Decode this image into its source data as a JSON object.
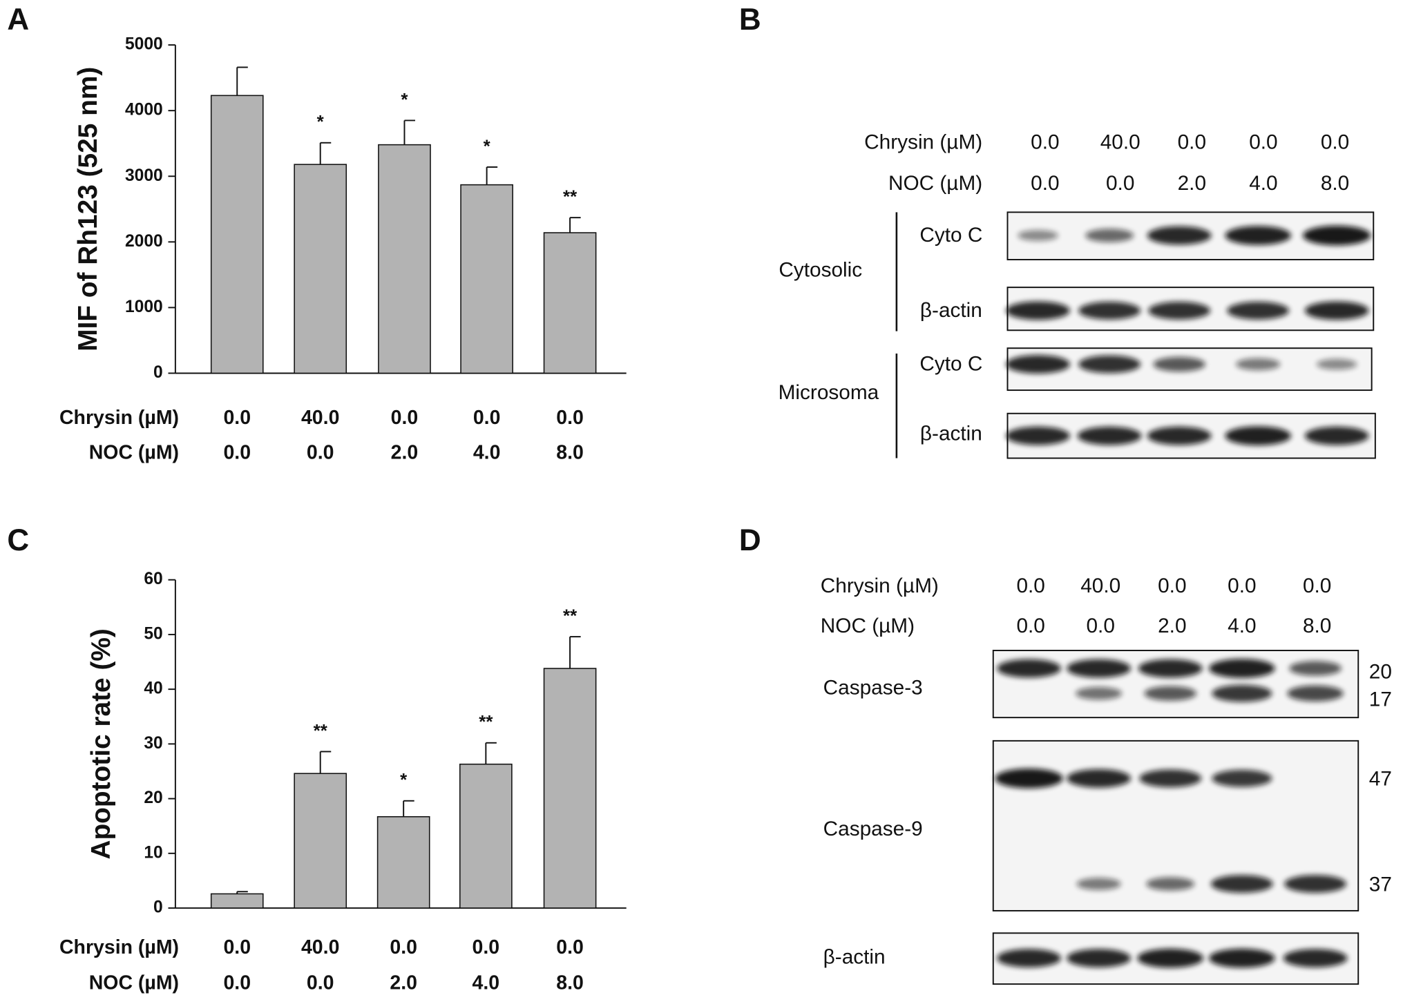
{
  "chart_data": [
    {
      "type": "bar",
      "panel": "A",
      "ylabel": "MIF of Rh123 (525 nm)",
      "values": [
        4230,
        3180,
        3480,
        2870,
        2140
      ],
      "errors": [
        430,
        330,
        370,
        270,
        230
      ],
      "annotations": [
        null,
        "*",
        "*",
        "*",
        "**"
      ],
      "color": "#b3b3b3",
      "ylim": [
        0,
        5000
      ],
      "yticks": [
        0,
        1000,
        2000,
        3000,
        4000,
        5000
      ],
      "conditions": [
        {
          "label": "Chrysin (µM)",
          "values": [
            "0.0",
            "40.0",
            "0.0",
            "0.0",
            "0.0"
          ]
        },
        {
          "label": "NOC (µM)",
          "values": [
            "0.0",
            "0.0",
            "2.0",
            "4.0",
            "8.0"
          ]
        }
      ]
    },
    {
      "type": "bar",
      "panel": "C",
      "ylabel": "Apoptotic rate (%)",
      "values": [
        2.6,
        24.6,
        16.7,
        26.3,
        43.8
      ],
      "errors": [
        0.4,
        4.0,
        2.9,
        3.9,
        5.8
      ],
      "annotations": [
        null,
        "**",
        "*",
        "**",
        "**"
      ],
      "color": "#b3b3b3",
      "ylim": [
        0,
        60
      ],
      "yticks": [
        0,
        10,
        20,
        30,
        40,
        50,
        60
      ],
      "conditions": [
        {
          "label": "Chrysin (µM)",
          "values": [
            "0.0",
            "40.0",
            "0.0",
            "0.0",
            "0.0"
          ]
        },
        {
          "label": "NOC (µM)",
          "values": [
            "0.0",
            "0.0",
            "2.0",
            "4.0",
            "8.0"
          ]
        }
      ]
    }
  ],
  "blots": [
    {
      "panel": "B",
      "conditions": [
        {
          "label": "Chrysin (µM)",
          "values": [
            "0.0",
            "40.0",
            "0.0",
            "0.0",
            "0.0"
          ]
        },
        {
          "label": "NOC (µM)",
          "values": [
            "0.0",
            "0.0",
            "2.0",
            "4.0",
            "8.0"
          ]
        }
      ],
      "groups": [
        {
          "label": "Cytosolic",
          "rows": [
            "Cyto C",
            "β-actin"
          ]
        },
        {
          "label": "Microsoma",
          "rows": [
            "Cyto C",
            "β-actin"
          ]
        }
      ]
    },
    {
      "panel": "D",
      "conditions": [
        {
          "label": "Chrysin (µM)",
          "values": [
            "0.0",
            "40.0",
            "0.0",
            "0.0",
            "0.0"
          ]
        },
        {
          "label": "NOC (µM)",
          "values": [
            "0.0",
            "0.0",
            "2.0",
            "4.0",
            "8.0"
          ]
        }
      ],
      "rows": [
        {
          "label": "Caspase-3",
          "markers": [
            "20",
            "17"
          ]
        },
        {
          "label": "Caspase-9",
          "markers": [
            "47",
            "37"
          ]
        },
        {
          "label": "β-actin"
        }
      ]
    }
  ]
}
